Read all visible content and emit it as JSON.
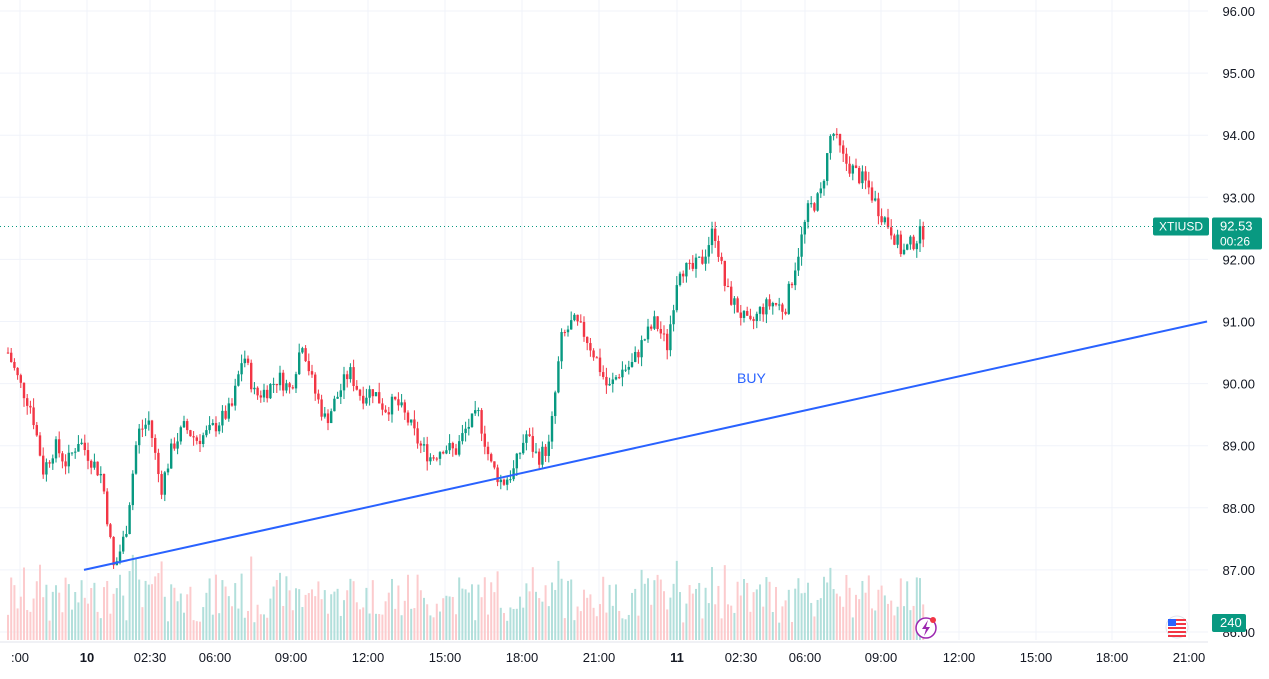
{
  "chart_data": {
    "type": "candlestick",
    "symbol": "XTIUSD",
    "last_price": "92.53",
    "countdown": "00:26",
    "volume_label": "240",
    "annotation": "BUY",
    "y_ticks": [
      "96.00",
      "95.00",
      "94.00",
      "93.00",
      "92.00",
      "91.00",
      "90.00",
      "89.00",
      "88.00",
      "87.00",
      "86.00"
    ],
    "x_ticks": [
      ":00",
      "10",
      "02:30",
      "06:00",
      "09:00",
      "12:00",
      "15:00",
      "18:00",
      "21:00",
      "11",
      "02:30",
      "06:00",
      "09:00",
      "12:00",
      "15:00",
      "18:00",
      "21:00"
    ],
    "major_x_ticks": [
      "10",
      "11"
    ],
    "ylim": [
      86.0,
      96.0
    ],
    "grid": true,
    "colors": {
      "up": "#089981",
      "down": "#f23645",
      "trendline": "#2962ff",
      "annotation": "#2962ff"
    },
    "trendline": {
      "start_price": 87.0,
      "end_price": 91.0,
      "start_x_tick": "10",
      "end_x_tick": "21:00"
    },
    "price_path": [
      [
        0,
        90.5
      ],
      [
        1,
        90.0
      ],
      [
        2,
        89.6
      ],
      [
        3,
        88.6
      ],
      [
        4,
        89.0
      ],
      [
        5,
        88.7
      ],
      [
        6,
        89.1
      ],
      [
        7,
        88.8
      ],
      [
        8,
        88.5
      ],
      [
        9,
        87.0
      ],
      [
        10,
        87.6
      ],
      [
        11,
        89.2
      ],
      [
        12,
        89.4
      ],
      [
        13,
        88.3
      ],
      [
        14,
        89.0
      ],
      [
        15,
        89.3
      ],
      [
        16,
        89.1
      ],
      [
        17,
        89.2
      ],
      [
        18,
        89.4
      ],
      [
        19,
        89.6
      ],
      [
        20,
        90.5
      ],
      [
        21,
        89.8
      ],
      [
        22,
        89.9
      ],
      [
        23,
        90.1
      ],
      [
        24,
        89.9
      ],
      [
        25,
        90.7
      ],
      [
        26,
        89.9
      ],
      [
        27,
        89.4
      ],
      [
        28,
        89.8
      ],
      [
        29,
        90.2
      ],
      [
        30,
        89.8
      ],
      [
        31,
        89.9
      ],
      [
        32,
        89.6
      ],
      [
        33,
        89.7
      ],
      [
        34,
        89.4
      ],
      [
        35,
        89.0
      ],
      [
        36,
        88.8
      ],
      [
        37,
        89.0
      ],
      [
        38,
        88.9
      ],
      [
        39,
        89.3
      ],
      [
        40,
        89.5
      ],
      [
        41,
        88.7
      ],
      [
        42,
        88.4
      ],
      [
        43,
        88.6
      ],
      [
        44,
        89.2
      ],
      [
        45,
        88.8
      ],
      [
        46,
        89.0
      ],
      [
        47,
        90.7
      ],
      [
        48,
        91.0
      ],
      [
        49,
        90.8
      ],
      [
        50,
        90.4
      ],
      [
        51,
        89.9
      ],
      [
        52,
        90.2
      ],
      [
        53,
        90.3
      ],
      [
        54,
        90.7
      ],
      [
        55,
        91.0
      ],
      [
        56,
        90.6
      ],
      [
        57,
        91.9
      ],
      [
        58,
        91.8
      ],
      [
        59,
        92.0
      ],
      [
        60,
        92.5
      ],
      [
        61,
        91.5
      ],
      [
        62,
        91.2
      ],
      [
        63,
        90.9
      ],
      [
        64,
        91.2
      ],
      [
        65,
        91.3
      ],
      [
        66,
        91.2
      ],
      [
        67,
        92.0
      ],
      [
        68,
        92.8
      ],
      [
        69,
        93.0
      ],
      [
        70,
        94.1
      ],
      [
        71,
        93.6
      ],
      [
        72,
        93.4
      ],
      [
        73,
        93.2
      ],
      [
        74,
        92.8
      ],
      [
        75,
        92.5
      ],
      [
        76,
        92.1
      ],
      [
        77,
        92.3
      ],
      [
        78,
        92.5
      ]
    ]
  }
}
